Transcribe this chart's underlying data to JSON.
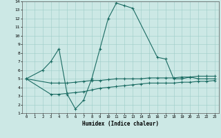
{
  "xlabel": "Humidex (Indice chaleur)",
  "xlim": [
    -0.5,
    23.5
  ],
  "ylim": [
    1,
    14
  ],
  "xticks": [
    0,
    1,
    2,
    3,
    4,
    5,
    6,
    7,
    8,
    9,
    10,
    11,
    12,
    13,
    14,
    15,
    16,
    17,
    18,
    19,
    20,
    21,
    22,
    23
  ],
  "yticks": [
    1,
    2,
    3,
    4,
    5,
    6,
    7,
    8,
    9,
    10,
    11,
    12,
    13,
    14
  ],
  "bg_color": "#cce8e5",
  "line_color": "#1a6b62",
  "line1_x": [
    0,
    2,
    3,
    4,
    5,
    6,
    7,
    8,
    9,
    10,
    11,
    12,
    13,
    16,
    17,
    18,
    19,
    20,
    21,
    22,
    23
  ],
  "line1_y": [
    5,
    6,
    7,
    8.5,
    3.2,
    1.5,
    2.5,
    5,
    8.5,
    12,
    13.8,
    13.5,
    13.2,
    7.5,
    7.3,
    5,
    5,
    5.2,
    5,
    5,
    5
  ],
  "line2_x": [
    0,
    3,
    4,
    5,
    6,
    7,
    8,
    9,
    10,
    11,
    12,
    13,
    14,
    15,
    16,
    17,
    18,
    19,
    20,
    21,
    22,
    23
  ],
  "line2_y": [
    5,
    4.5,
    4.5,
    4.5,
    4.6,
    4.7,
    4.8,
    4.8,
    4.9,
    5.0,
    5.0,
    5.0,
    5.0,
    5.1,
    5.1,
    5.1,
    5.1,
    5.2,
    5.2,
    5.3,
    5.3,
    5.3
  ],
  "line3_x": [
    0,
    3,
    4,
    5,
    6,
    7,
    8,
    9,
    10,
    11,
    12,
    13,
    14,
    15,
    16,
    17,
    18,
    19,
    20,
    21,
    22,
    23
  ],
  "line3_y": [
    5,
    3.2,
    3.2,
    3.3,
    3.4,
    3.5,
    3.7,
    3.9,
    4.0,
    4.1,
    4.2,
    4.3,
    4.4,
    4.5,
    4.5,
    4.5,
    4.5,
    4.6,
    4.6,
    4.7,
    4.7,
    4.8
  ]
}
